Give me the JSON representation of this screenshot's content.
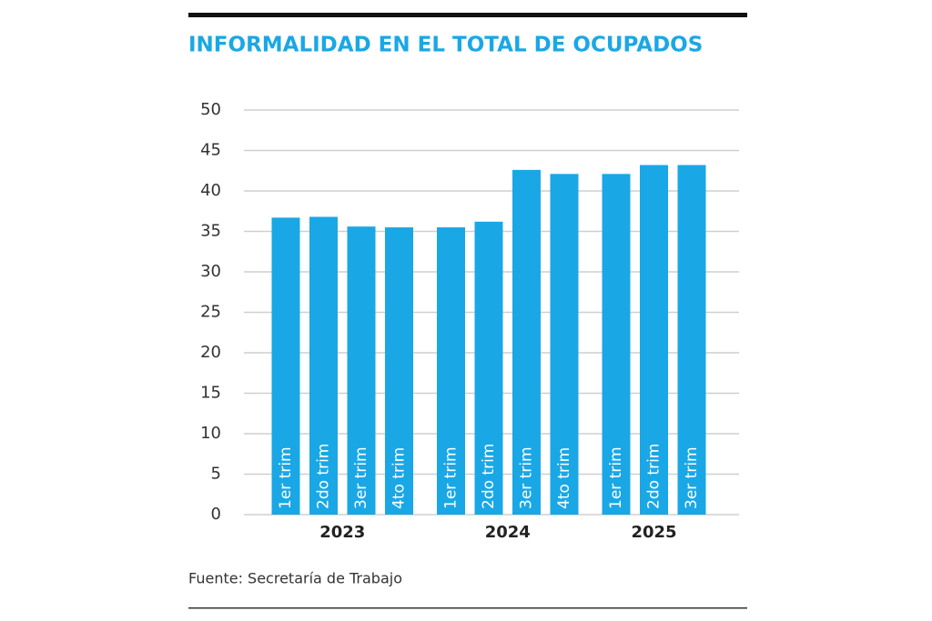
{
  "chart_data": {
    "type": "bar",
    "title": "INFORMALIDAD EN EL TOTAL DE OCUPADOS",
    "source": "Fuente: Secretaría de Trabajo",
    "color": "#1aa7e6",
    "grid": true,
    "ylim": [
      0,
      50
    ],
    "yticks": [
      0,
      5,
      10,
      15,
      20,
      25,
      30,
      35,
      40,
      45,
      50
    ],
    "groups": [
      {
        "name": "2023",
        "categories": [
          "1er trim",
          "2do trim",
          "3er trim",
          "4to trim"
        ],
        "values": [
          36.7,
          36.8,
          35.6,
          35.5
        ]
      },
      {
        "name": "2024",
        "categories": [
          "1er trim",
          "2do trim",
          "3er trim",
          "4to trim"
        ],
        "values": [
          35.5,
          36.2,
          42.6,
          42.1
        ]
      },
      {
        "name": "2025",
        "categories": [
          "1er trim",
          "2do trim",
          "3er trim"
        ],
        "values": [
          42.1,
          43.2,
          43.2
        ]
      }
    ]
  }
}
